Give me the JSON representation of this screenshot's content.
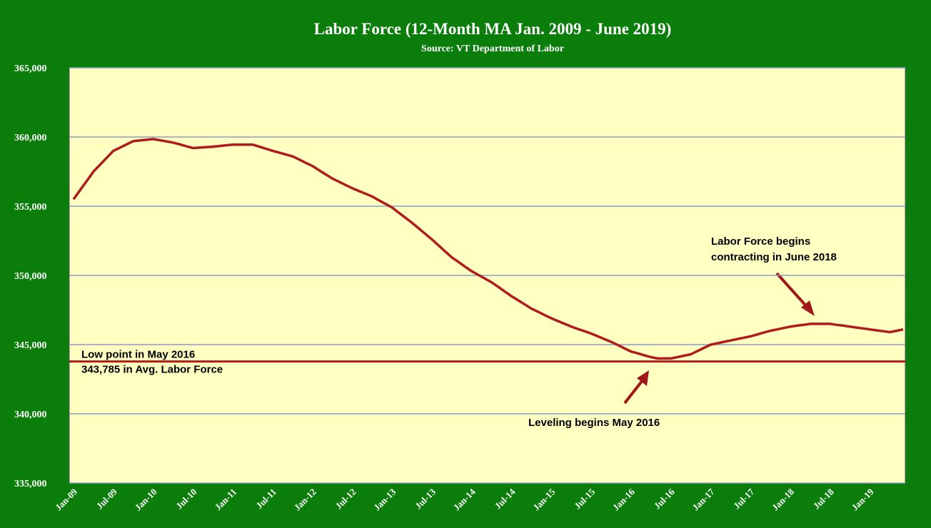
{
  "chart_data": {
    "type": "line",
    "title": "Labor Force (12-Month MA Jan. 2009 - June 2019)",
    "subtitle": "Source: VT Department of Labor",
    "categories": [
      "Jan-09",
      null,
      null,
      null,
      null,
      null,
      "Jul-09",
      null,
      null,
      null,
      null,
      null,
      "Jan-10",
      null,
      null,
      null,
      null,
      null,
      "Jul-10",
      null,
      null,
      null,
      null,
      null,
      "Jan-11",
      null,
      null,
      null,
      null,
      null,
      "Jul-11",
      null,
      null,
      null,
      null,
      null,
      "Jan-12",
      null,
      null,
      null,
      null,
      null,
      "Jul-12",
      null,
      null,
      null,
      null,
      null,
      "Jan-13",
      null,
      null,
      null,
      null,
      null,
      "Jul-13",
      null,
      null,
      null,
      null,
      null,
      "Jan-14",
      null,
      null,
      null,
      null,
      null,
      "Jul-14",
      null,
      null,
      null,
      null,
      null,
      "Jan-15",
      null,
      null,
      null,
      null,
      null,
      "Jul-15",
      null,
      null,
      null,
      null,
      null,
      "Jan-16",
      null,
      null,
      null,
      null,
      null,
      "Jul-16",
      null,
      null,
      null,
      null,
      null,
      "Jan-17",
      null,
      null,
      null,
      null,
      null,
      "Jul-17",
      null,
      null,
      null,
      null,
      null,
      "Jan-18",
      null,
      null,
      null,
      null,
      null,
      "Jul-18",
      null,
      null,
      null,
      null,
      null,
      "Jan-19",
      null,
      null,
      null,
      null,
      null
    ],
    "series": [
      {
        "name": "Labor Force",
        "color": "#b01c1c",
        "values": [
          355500,
          356170,
          356830,
          357500,
          358000,
          358500,
          359000,
          359230,
          359470,
          359700,
          359750,
          359800,
          359850,
          359770,
          359680,
          359600,
          359470,
          359330,
          359200,
          359230,
          359270,
          359300,
          359350,
          359400,
          359450,
          359450,
          359450,
          359450,
          359300,
          359150,
          359000,
          358870,
          358730,
          358600,
          358370,
          358130,
          357900,
          357600,
          357300,
          357000,
          356770,
          356530,
          356300,
          356100,
          355900,
          355700,
          355430,
          355170,
          354900,
          354530,
          354170,
          353800,
          353400,
          353000,
          352600,
          352170,
          351730,
          351300,
          350970,
          350630,
          350300,
          350030,
          349770,
          349500,
          349170,
          348830,
          348500,
          348200,
          347900,
          347600,
          347370,
          347130,
          346900,
          346700,
          346500,
          346300,
          346130,
          345970,
          345800,
          345600,
          345400,
          345200,
          344970,
          344730,
          344500,
          344370,
          344230,
          344100,
          344000,
          344000,
          344000,
          344100,
          344200,
          344300,
          344530,
          344770,
          345000,
          345100,
          345200,
          345300,
          345400,
          345500,
          345600,
          345730,
          345870,
          346000,
          346100,
          346200,
          346300,
          346370,
          346430,
          346500,
          346500,
          346500,
          346500,
          346430,
          346370,
          346300,
          346230,
          346170,
          346100,
          346030,
          345970,
          345900,
          346000,
          346100
        ]
      }
    ],
    "ylim": [
      335000,
      365000
    ],
    "yticks": [
      {
        "value": 335000,
        "label": "335,000"
      },
      {
        "value": 340000,
        "label": "340,000"
      },
      {
        "value": 345000,
        "label": "345,000"
      },
      {
        "value": 350000,
        "label": "350,000"
      },
      {
        "value": 355000,
        "label": "355,000"
      },
      {
        "value": 360000,
        "label": "360,000"
      },
      {
        "value": 365000,
        "label": "365,000"
      }
    ],
    "grid": true,
    "reference_line": {
      "value": 343785,
      "color": "#b01c1c",
      "label": "Low point in May 2016",
      "value_label": "343,785  in Avg. Labor Force"
    },
    "annotations": [
      {
        "lines": [
          "Labor Force begins",
          "contracting in June 2018"
        ]
      },
      {
        "lines": [
          "Leveling begins May 2016"
        ]
      }
    ]
  }
}
